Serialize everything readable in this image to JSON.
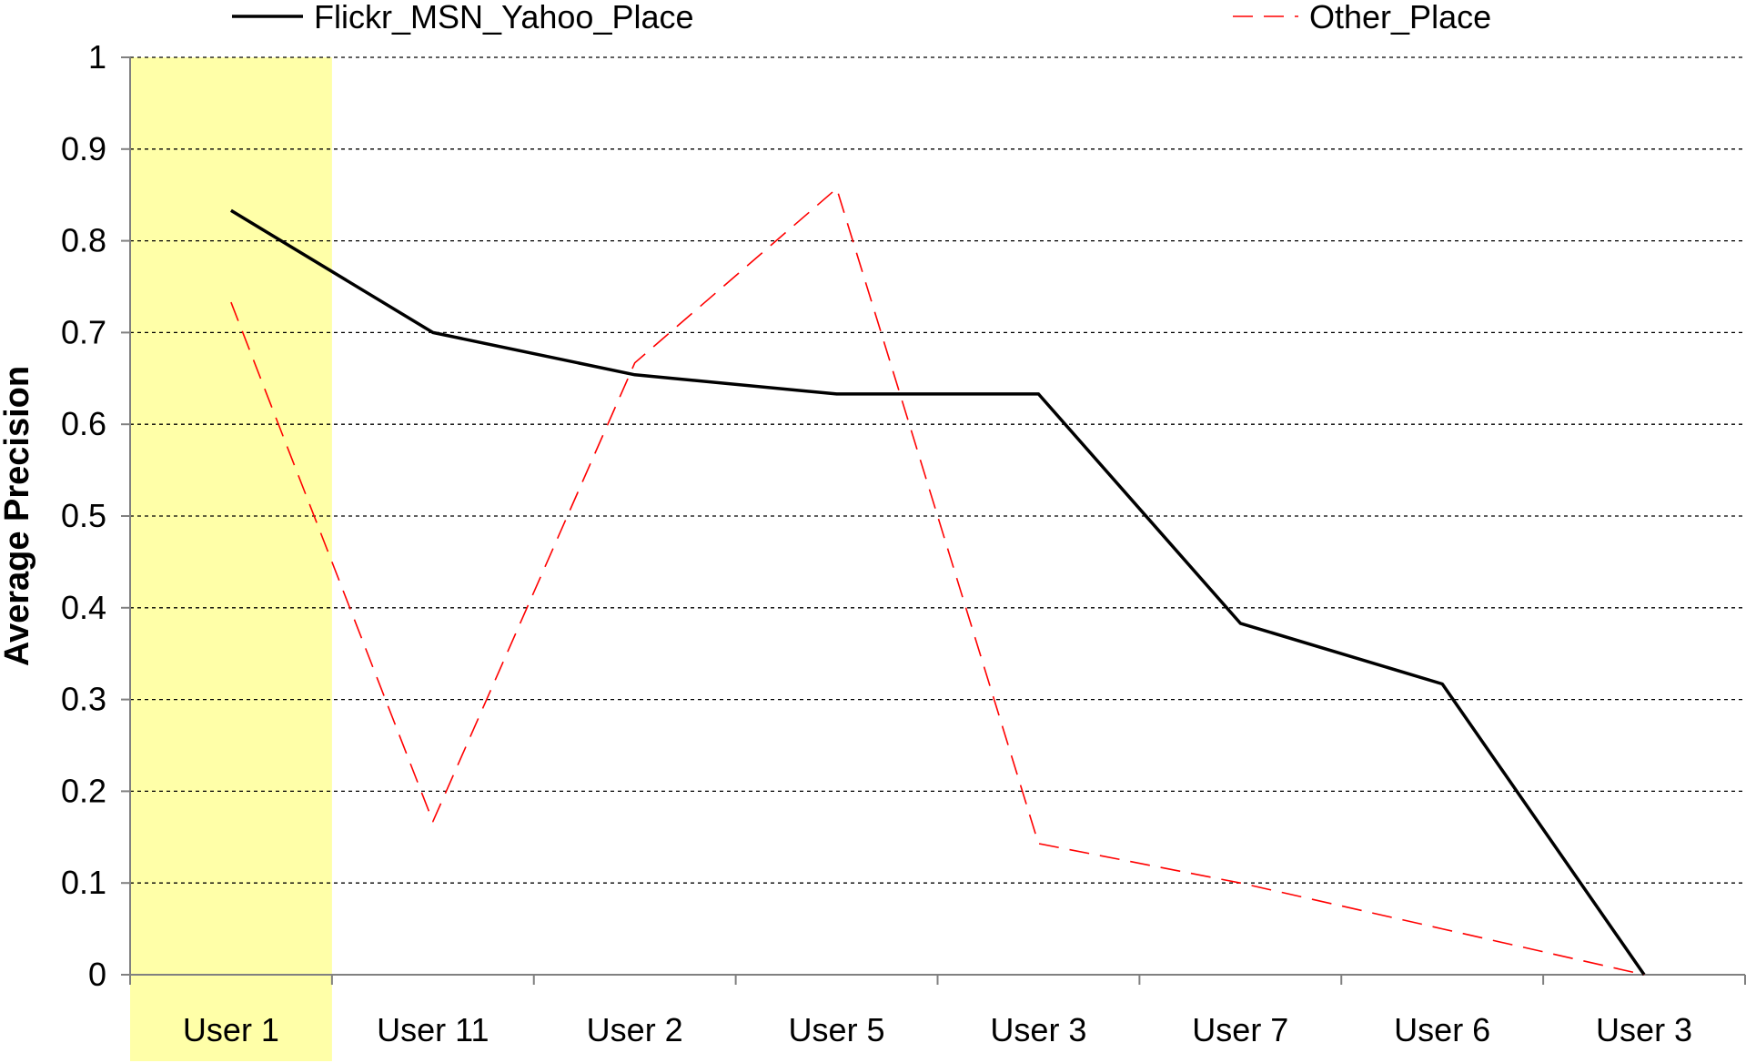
{
  "chart_data": {
    "type": "line",
    "title": "",
    "xlabel": "",
    "ylabel": "Average Precision",
    "categories": [
      "User 1",
      "User 11",
      "User 2",
      "User 5",
      "User 3",
      "User 7",
      "User 6",
      "User 3"
    ],
    "ylim": [
      0,
      1
    ],
    "yticks": [
      "0",
      "0.1",
      "0.2",
      "0.3",
      "0.4",
      "0.5",
      "0.6",
      "0.7",
      "0.8",
      "0.9",
      "1"
    ],
    "grid": true,
    "legend_position": "top",
    "highlighted_category_index": 0,
    "colors": {
      "highlight_fill": "#ffffa8",
      "highlight_label": "#808000",
      "grid": "#000000",
      "axis": "#808080"
    },
    "series": [
      {
        "name": "Flickr_MSN_Yahoo_Place",
        "values": [
          0.833,
          0.7,
          0.654,
          0.633,
          0.633,
          0.383,
          0.317,
          0.0
        ],
        "color": "#000000",
        "style": "solid"
      },
      {
        "name": "Other_Place",
        "values": [
          0.733,
          0.167,
          0.667,
          0.857,
          0.143,
          0.1,
          0.05,
          0.0
        ],
        "color": "#ff0000",
        "style": "dashed"
      }
    ]
  }
}
